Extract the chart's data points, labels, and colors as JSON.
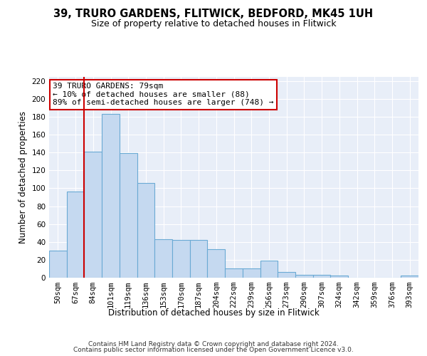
{
  "title_line1": "39, TRURO GARDENS, FLITWICK, BEDFORD, MK45 1UH",
  "title_line2": "Size of property relative to detached houses in Flitwick",
  "xlabel": "Distribution of detached houses by size in Flitwick",
  "ylabel": "Number of detached properties",
  "categories": [
    "50sqm",
    "67sqm",
    "84sqm",
    "101sqm",
    "119sqm",
    "136sqm",
    "153sqm",
    "170sqm",
    "187sqm",
    "204sqm",
    "222sqm",
    "239sqm",
    "256sqm",
    "273sqm",
    "290sqm",
    "307sqm",
    "324sqm",
    "342sqm",
    "359sqm",
    "376sqm",
    "393sqm"
  ],
  "values": [
    30,
    96,
    141,
    183,
    139,
    106,
    43,
    42,
    42,
    32,
    10,
    10,
    19,
    6,
    3,
    3,
    2,
    0,
    0,
    0,
    2
  ],
  "bar_color": "#c5d9f0",
  "bar_edge_color": "#6aaad4",
  "vline_x": 1.5,
  "vline_color": "#cc0000",
  "annotation_line1": "39 TRURO GARDENS: 79sqm",
  "annotation_line2": "← 10% of detached houses are smaller (88)",
  "annotation_line3": "89% of semi-detached houses are larger (748) →",
  "annotation_box_color": "#ffffff",
  "annotation_box_edge": "#cc0000",
  "ylim": [
    0,
    225
  ],
  "yticks": [
    0,
    20,
    40,
    60,
    80,
    100,
    120,
    140,
    160,
    180,
    200,
    220
  ],
  "background_color": "#e8eef8",
  "footer_line1": "Contains HM Land Registry data © Crown copyright and database right 2024.",
  "footer_line2": "Contains public sector information licensed under the Open Government Licence v3.0.",
  "title_fontsize": 10.5,
  "subtitle_fontsize": 9,
  "axis_label_fontsize": 8.5,
  "tick_fontsize": 7.5,
  "annotation_fontsize": 8,
  "footer_fontsize": 6.5
}
